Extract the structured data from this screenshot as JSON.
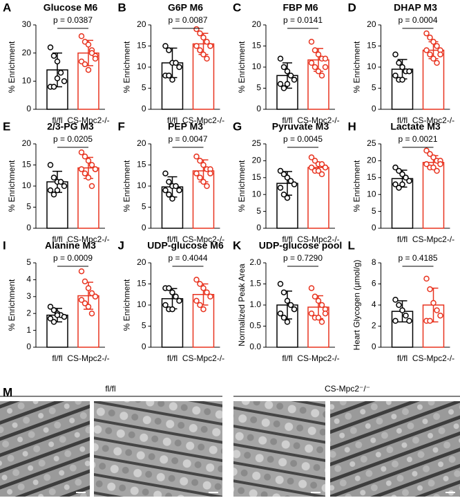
{
  "chart_data": [
    {
      "type": "bar",
      "label": "A",
      "title": "Glucose M6",
      "ylabel": "% Enrichment",
      "annotation": "p = 0.0387",
      "categories": [
        "fl/fl",
        "CS-Mpc2-/-"
      ],
      "colors": [
        "#000000",
        "#e8321e"
      ],
      "values": [
        14,
        20
      ],
      "errors": [
        6,
        4.5
      ],
      "points": [
        [
          22,
          19,
          17,
          13,
          10,
          8,
          8,
          11
        ],
        [
          26,
          24,
          23,
          21,
          19,
          17,
          16,
          14,
          20,
          18
        ]
      ],
      "ylim": [
        0,
        30
      ],
      "yticks": [
        0,
        10,
        20,
        30
      ]
    },
    {
      "type": "bar",
      "label": "B",
      "title": "G6P M6",
      "ylabel": "% Enrichment",
      "annotation": "p = 0.0087",
      "categories": [
        "fl/fl",
        "CS-Mpc2-/-"
      ],
      "colors": [
        "#000000",
        "#e8321e"
      ],
      "values": [
        11,
        15.5
      ],
      "errors": [
        3.5,
        2.5
      ],
      "points": [
        [
          15,
          14,
          11,
          11,
          10,
          8,
          8,
          7
        ],
        [
          19,
          18,
          17,
          16,
          15,
          15,
          14,
          13,
          12,
          15
        ]
      ],
      "ylim": [
        0,
        20
      ],
      "yticks": [
        0,
        5,
        10,
        15,
        20
      ]
    },
    {
      "type": "bar",
      "label": "C",
      "title": "FBP M6",
      "ylabel": "% Enrichment",
      "annotation": "p = 0.0141",
      "categories": [
        "fl/fl",
        "CS-Mpc2-/-"
      ],
      "colors": [
        "#000000",
        "#e8321e"
      ],
      "values": [
        8,
        11.7
      ],
      "errors": [
        3,
        2.7
      ],
      "points": [
        [
          12,
          10,
          9,
          8,
          7,
          6,
          5,
          6
        ],
        [
          16,
          14,
          13,
          12,
          12,
          11,
          10,
          9,
          8,
          10
        ]
      ],
      "ylim": [
        0,
        20
      ],
      "yticks": [
        0,
        5,
        10,
        15,
        20
      ]
    },
    {
      "type": "bar",
      "label": "D",
      "title": "DHAP M3",
      "ylabel": "% Enrichment",
      "annotation": "p = 0.0004",
      "categories": [
        "fl/fl",
        "CS-Mpc2-/-"
      ],
      "colors": [
        "#000000",
        "#e8321e"
      ],
      "values": [
        9.5,
        14
      ],
      "errors": [
        2.3,
        2
      ],
      "points": [
        [
          13,
          11,
          10,
          9,
          9,
          8,
          7,
          7
        ],
        [
          18,
          17,
          16,
          15,
          14,
          14,
          13,
          12,
          11,
          13
        ]
      ],
      "ylim": [
        0,
        20
      ],
      "yticks": [
        0,
        5,
        10,
        15,
        20
      ]
    },
    {
      "type": "bar",
      "label": "E",
      "title": "2/3-PG M3",
      "ylabel": "% Enrichment",
      "annotation": "p = 0.0205",
      "categories": [
        "fl/fl",
        "CS-Mpc2-/-"
      ],
      "colors": [
        "#000000",
        "#e8321e"
      ],
      "values": [
        11,
        14.3
      ],
      "errors": [
        2.5,
        2.5
      ],
      "points": [
        [
          15,
          12,
          11,
          11,
          10,
          9,
          8,
          9
        ],
        [
          18,
          17,
          16,
          15,
          14,
          14,
          13,
          12,
          10,
          14
        ]
      ],
      "ylim": [
        0,
        20
      ],
      "yticks": [
        0,
        5,
        10,
        15,
        20
      ]
    },
    {
      "type": "bar",
      "label": "F",
      "title": "PEP M3",
      "ylabel": "% Enrichment",
      "annotation": "p = 0.0047",
      "categories": [
        "fl/fl",
        "CS-Mpc2-/-"
      ],
      "colors": [
        "#000000",
        "#e8321e"
      ],
      "values": [
        9.8,
        13.6
      ],
      "errors": [
        2.4,
        2.6
      ],
      "points": [
        [
          13,
          11,
          10,
          10,
          9,
          9,
          8,
          7
        ],
        [
          17,
          16,
          15,
          14,
          14,
          13,
          12,
          11,
          10,
          13
        ]
      ],
      "ylim": [
        0,
        20
      ],
      "yticks": [
        0,
        5,
        10,
        15,
        20
      ]
    },
    {
      "type": "bar",
      "label": "G",
      "title": "Pyruvate M3",
      "ylabel": "% Enrichment",
      "annotation": "p = 0.0045",
      "categories": [
        "fl/fl",
        "CS-Mpc2-/-"
      ],
      "colors": [
        "#000000",
        "#e8321e"
      ],
      "values": [
        13.3,
        18
      ],
      "errors": [
        3.5,
        1.5
      ],
      "points": [
        [
          17,
          16,
          15,
          14,
          13,
          12,
          10,
          9
        ],
        [
          21,
          20,
          19,
          19,
          18,
          18,
          17,
          17,
          16,
          18
        ]
      ],
      "ylim": [
        0,
        25
      ],
      "yticks": [
        0,
        5,
        10,
        15,
        20,
        25
      ]
    },
    {
      "type": "bar",
      "label": "H",
      "title": "Lactate M3",
      "ylabel": "% Enrichment",
      "annotation": "p = 0.0021",
      "categories": [
        "fl/fl",
        "CS-Mpc2-/-"
      ],
      "colors": [
        "#000000",
        "#e8321e"
      ],
      "values": [
        14.7,
        19.5
      ],
      "errors": [
        2.5,
        2
      ],
      "points": [
        [
          18,
          17,
          16,
          15,
          14,
          13,
          12,
          13
        ],
        [
          23,
          22,
          21,
          20,
          20,
          19,
          18,
          18,
          17,
          19
        ]
      ],
      "ylim": [
        0,
        25
      ],
      "yticks": [
        0,
        5,
        10,
        15,
        20,
        25
      ]
    },
    {
      "type": "bar",
      "label": "I",
      "title": "Alanine M3",
      "ylabel": "% Enrichment",
      "annotation": "p = 0.0009",
      "categories": [
        "fl/fl",
        "CS-Mpc2-/-"
      ],
      "colors": [
        "#000000",
        "#e8321e"
      ],
      "values": [
        1.9,
        3.05
      ],
      "errors": [
        0.4,
        0.8
      ],
      "points": [
        [
          2.4,
          2.2,
          2.0,
          1.9,
          1.8,
          1.7,
          1.5,
          1.9
        ],
        [
          4.5,
          3.9,
          3.5,
          3.2,
          3.0,
          2.8,
          2.6,
          2.4,
          2.0,
          3.0
        ]
      ],
      "ylim": [
        0,
        5
      ],
      "yticks": [
        0,
        1,
        2,
        3,
        4,
        5
      ]
    },
    {
      "type": "bar",
      "label": "J",
      "title": "UDP-glucose M6",
      "ylabel": "% Enrichment",
      "annotation": "p = 0.4044",
      "categories": [
        "fl/fl",
        "CS-Mpc2-/-"
      ],
      "colors": [
        "#000000",
        "#e8321e"
      ],
      "values": [
        11.5,
        12.5
      ],
      "errors": [
        2.4,
        2.5
      ],
      "points": [
        [
          14,
          14,
          13,
          12,
          11,
          10,
          9,
          9
        ],
        [
          16,
          15,
          14,
          13,
          12,
          11,
          10,
          9
        ]
      ],
      "ylim": [
        0,
        20
      ],
      "yticks": [
        0,
        5,
        10,
        15,
        20
      ]
    },
    {
      "type": "bar",
      "label": "K",
      "title": "UDP-glucose pool",
      "ylabel": "Normalized Peak Area",
      "annotation": "p = 0.7290",
      "categories": [
        "fl/fl",
        "CS-Mpc2-/-"
      ],
      "colors": [
        "#000000",
        "#e8321e"
      ],
      "values": [
        1.0,
        0.95
      ],
      "errors": [
        0.33,
        0.27
      ],
      "points": [
        [
          1.5,
          1.3,
          1.1,
          1.0,
          0.9,
          0.8,
          0.7,
          0.6
        ],
        [
          1.4,
          1.2,
          1.1,
          1.0,
          0.9,
          0.8,
          0.7,
          0.7,
          0.6,
          0.8
        ]
      ],
      "ylim": [
        0,
        2
      ],
      "yticks": [
        {
          "value": 0,
          "label": "0.0"
        },
        0.5,
        {
          "value": 1,
          "label": "1.0"
        },
        1.5,
        {
          "value": 2,
          "label": "2.0"
        }
      ]
    },
    {
      "type": "bar",
      "label": "L",
      "title": "",
      "ylabel": "Heart Glycogen (µmol/g)",
      "annotation": "p = 0.4185",
      "categories": [
        "fl/fl",
        "CS-Mpc2-/-"
      ],
      "colors": [
        "#000000",
        "#e8321e"
      ],
      "values": [
        3.4,
        4.0
      ],
      "errors": [
        1.0,
        1.6
      ],
      "points": [
        [
          4.5,
          4.0,
          3.5,
          3.0,
          2.5,
          2.5
        ],
        [
          6.5,
          5.5,
          4.2,
          3.5,
          3.0,
          2.5,
          2.5
        ]
      ],
      "ylim": [
        0,
        8
      ],
      "yticks": [
        0,
        2,
        4,
        6,
        8
      ]
    }
  ],
  "micrograph": {
    "label": "M",
    "groups": [
      "fl/fl",
      "CS-Mpc2⁻/⁻"
    ]
  }
}
